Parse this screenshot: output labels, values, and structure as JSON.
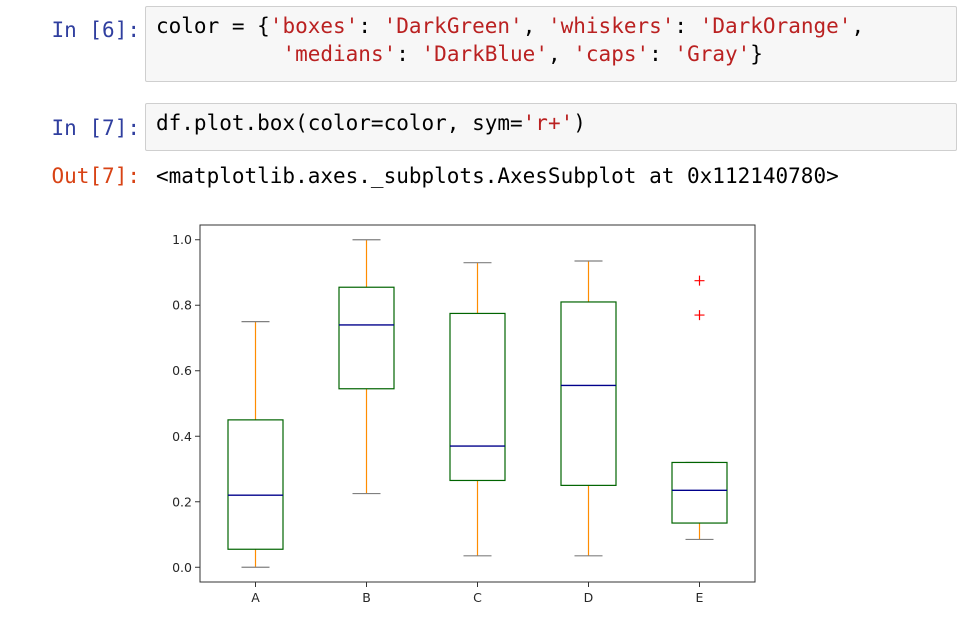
{
  "cells": [
    {
      "prompt": "In [6]:",
      "line1": {
        "p1": "color = {",
        "s1": "'boxes'",
        "p2": ": ",
        "s2": "'DarkGreen'",
        "p3": ", ",
        "s3": "'whiskers'",
        "p4": ": ",
        "s4": "'DarkOrange'",
        "p5": ","
      },
      "line2": {
        "indent": "          ",
        "s1": "'medians'",
        "p1": ": ",
        "s2": "'DarkBlue'",
        "p2": ", ",
        "s3": "'caps'",
        "p3": ": ",
        "s4": "'Gray'",
        "p4": "}"
      }
    },
    {
      "prompt": "In [7]:",
      "line1": {
        "p1": "df.plot.box(color=color, sym=",
        "s1": "'r+'",
        "p2": ")"
      },
      "out_prompt": "Out[7]:",
      "output": "<matplotlib.axes._subplots.AxesSubplot at 0x112140780>"
    }
  ],
  "chart_data": {
    "type": "box",
    "categories": [
      "A",
      "B",
      "C",
      "D",
      "E"
    ],
    "boxes": [
      {
        "category": "A",
        "whislo": 0.0,
        "q1": 0.055,
        "med": 0.22,
        "q3": 0.45,
        "whishi": 0.75,
        "fliers": []
      },
      {
        "category": "B",
        "whislo": 0.225,
        "q1": 0.545,
        "med": 0.74,
        "q3": 0.855,
        "whishi": 1.0,
        "fliers": []
      },
      {
        "category": "C",
        "whislo": 0.035,
        "q1": 0.265,
        "med": 0.37,
        "q3": 0.775,
        "whishi": 0.93,
        "fliers": []
      },
      {
        "category": "D",
        "whislo": 0.035,
        "q1": 0.25,
        "med": 0.555,
        "q3": 0.81,
        "whishi": 0.935,
        "fliers": []
      },
      {
        "category": "E",
        "whislo": 0.085,
        "q1": 0.135,
        "med": 0.235,
        "q3": 0.32,
        "whishi": 0.32,
        "fliers": [
          0.875,
          0.77
        ]
      }
    ],
    "yticks": [
      "0.0",
      "0.2",
      "0.4",
      "0.6",
      "0.8",
      "1.0"
    ],
    "ylim": [
      -0.045,
      1.045
    ],
    "grid": false,
    "colors": {
      "boxes": "#006400",
      "whiskers": "#FF8C00",
      "medians": "#00008B",
      "caps": "#808080",
      "fliers": "#FF0000"
    }
  }
}
